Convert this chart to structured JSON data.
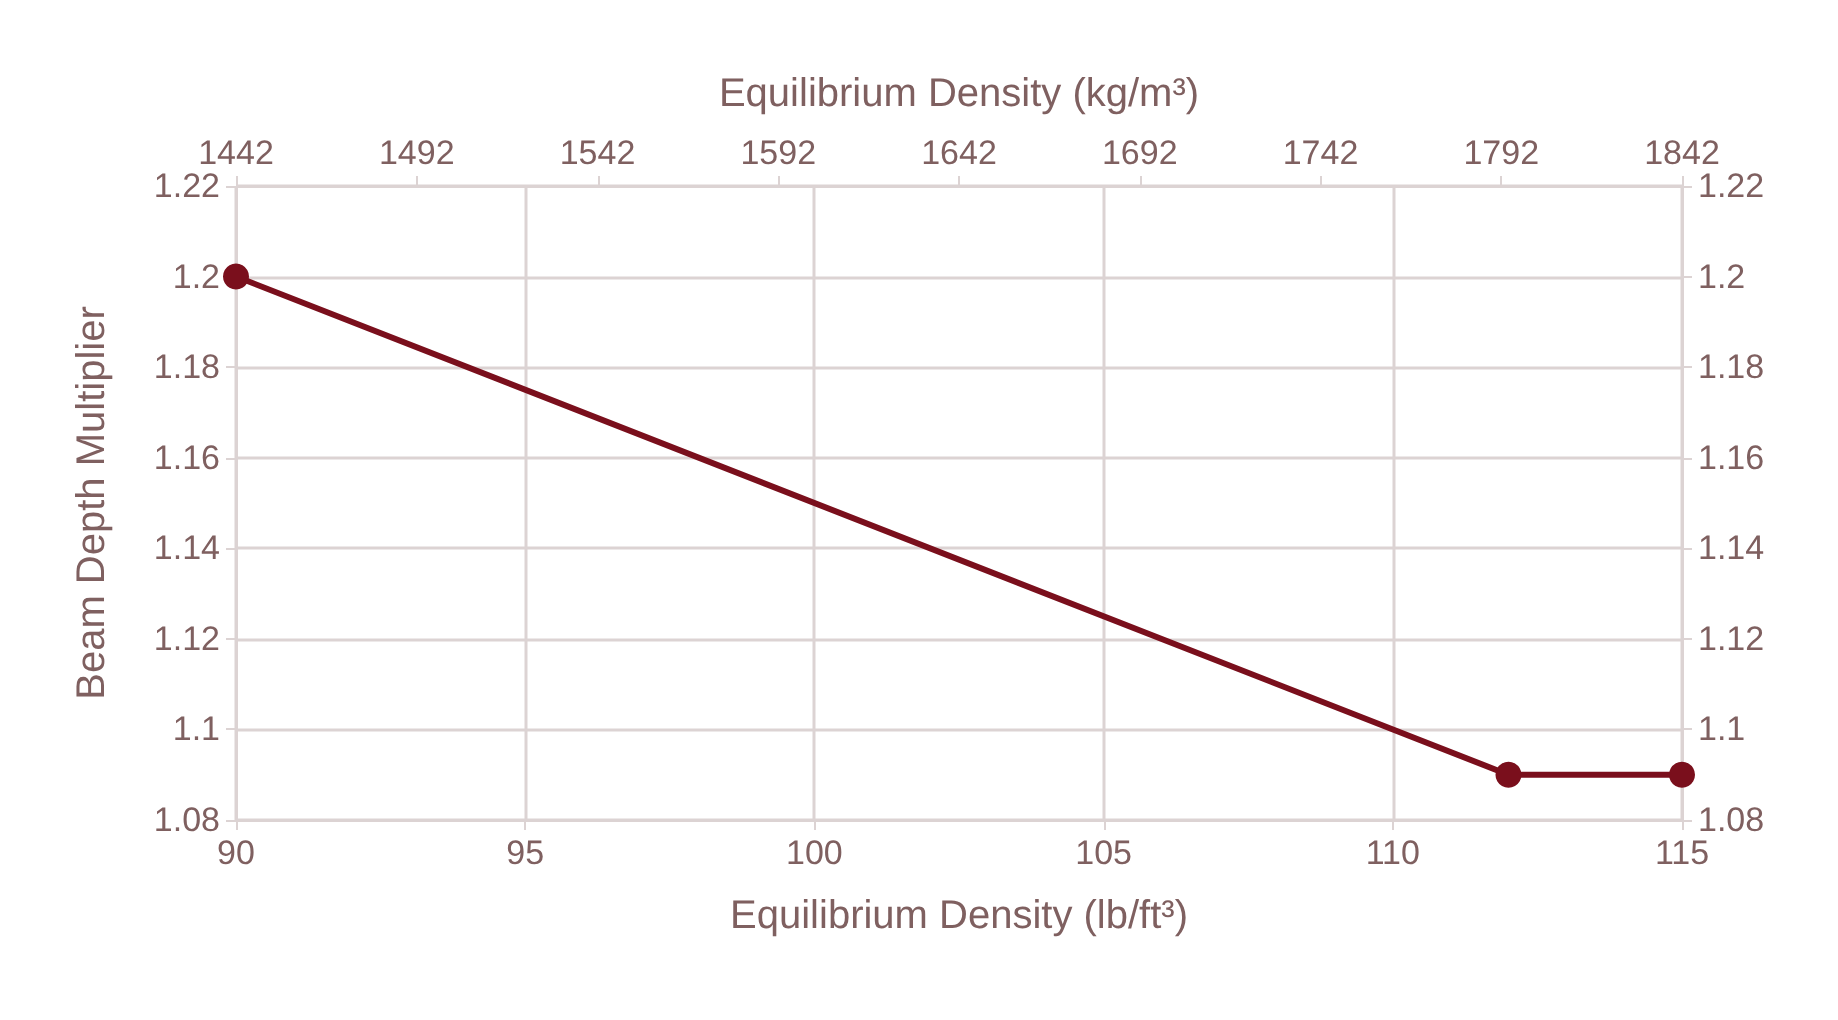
{
  "chart_data": {
    "type": "line",
    "xlabel": "Equilibrium Density (lb/ft³)",
    "ylabel": "Beam Depth Multiplier",
    "x2label": "Equilibrium Density (kg/m³)",
    "x": [
      90,
      112,
      115
    ],
    "series": [
      {
        "color": "#7a0f1c",
        "values": [
          1.2,
          1.09,
          1.09
        ]
      }
    ],
    "xlim": [
      90,
      115
    ],
    "xticks": [
      90,
      95,
      100,
      105,
      110,
      115
    ],
    "x2lim": [
      1442,
      1842
    ],
    "x2ticks": [
      1442,
      1492,
      1542,
      1592,
      1642,
      1692,
      1742,
      1792,
      1842
    ],
    "ylim": [
      1.08,
      1.22
    ],
    "yticks": [
      1.08,
      1.1,
      1.12,
      1.14,
      1.16,
      1.18,
      1.2,
      1.22
    ],
    "y2lim": [
      1.08,
      1.22
    ],
    "y2ticks": [
      1.08,
      1.1,
      1.12,
      1.14,
      1.16,
      1.18,
      1.2,
      1.22
    ],
    "grid": true,
    "marker": "circle",
    "line_style": "solid"
  }
}
